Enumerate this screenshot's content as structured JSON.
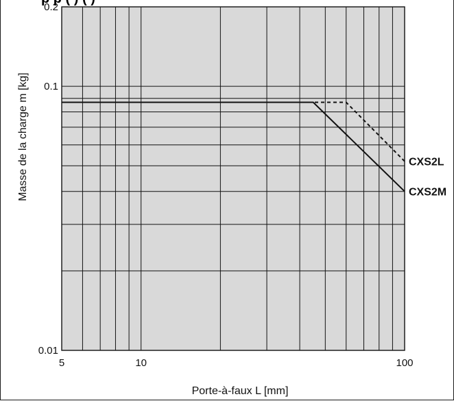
{
  "chart_data": {
    "type": "line",
    "title_fragment": "p p ( )    (   )",
    "xlabel": "Porte-à-faux L [mm]",
    "ylabel": "Masse de la charge m [kg]",
    "x_scale": "log",
    "y_scale": "log",
    "xlim": [
      5,
      100
    ],
    "ylim": [
      0.01,
      0.2
    ],
    "x_ticks": [
      5,
      10,
      100
    ],
    "x_tick_labels": [
      "5",
      "10",
      "100"
    ],
    "y_ticks": [
      0.01,
      0.1,
      0.2
    ],
    "y_tick_labels": [
      "0.01",
      "0.1",
      "0.2"
    ],
    "grid": true,
    "x_grid": [
      5,
      6,
      7,
      8,
      9,
      10,
      20,
      30,
      40,
      50,
      60,
      70,
      80,
      90,
      100
    ],
    "y_grid": [
      0.01,
      0.02,
      0.03,
      0.04,
      0.05,
      0.06,
      0.07,
      0.08,
      0.09,
      0.1,
      0.2
    ],
    "background": "#d9d9d9",
    "series": [
      {
        "name": "CXS2L",
        "style": "dashed",
        "x": [
          5,
          60,
          100
        ],
        "y": [
          0.087,
          0.087,
          0.052
        ]
      },
      {
        "name": "CXS2M",
        "style": "solid",
        "x": [
          5,
          45,
          100
        ],
        "y": [
          0.087,
          0.087,
          0.04
        ]
      }
    ]
  }
}
